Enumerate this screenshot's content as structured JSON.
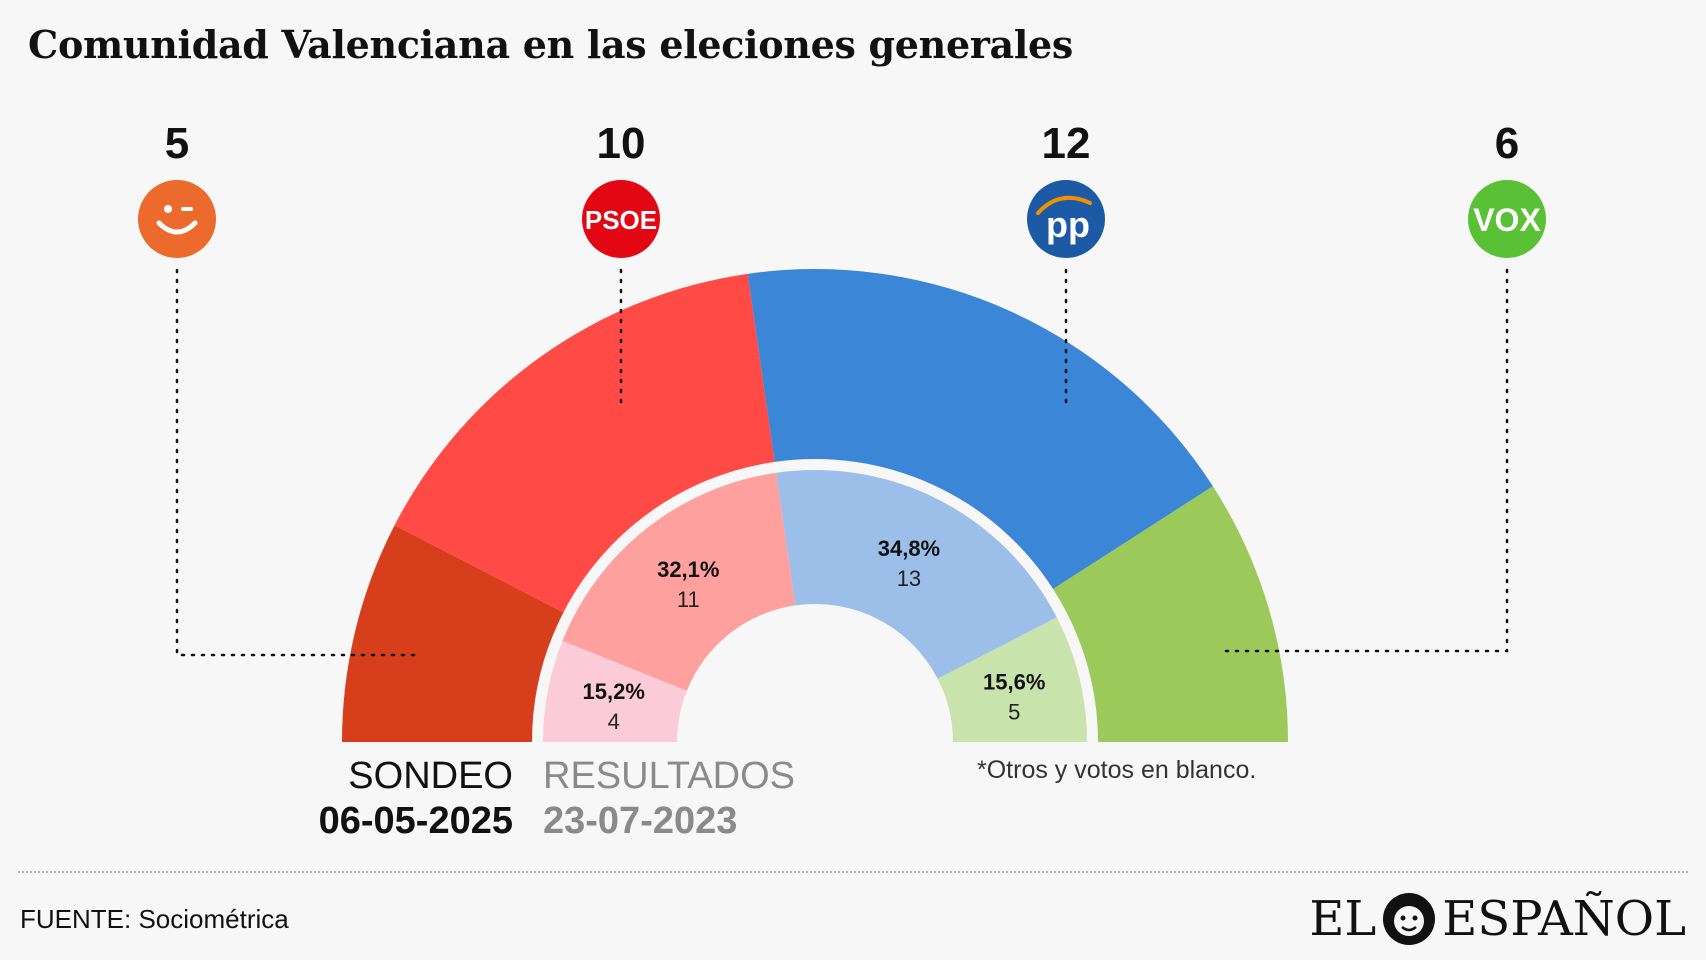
{
  "title": "Comunidad Valenciana en las eleciones generales",
  "chart_data": {
    "type": "pie",
    "subtype": "double-semicircle-parliament",
    "outer_ring": {
      "label": "SONDEO",
      "date": "06-05-2025",
      "parties": [
        {
          "party": "Compromís",
          "seats": 5,
          "color": "#d63e1c"
        },
        {
          "party": "PSOE",
          "seats": 10,
          "color": "#ff4a45"
        },
        {
          "party": "PP",
          "seats": 12,
          "color": "#3b86d6"
        },
        {
          "party": "VOX",
          "seats": 6,
          "color": "#9bc95a"
        }
      ]
    },
    "inner_ring": {
      "label": "RESULTADOS",
      "date": "23-07-2023",
      "parties": [
        {
          "party": "Compromís",
          "percent": "15,2%",
          "seats": 4,
          "color": "#fbcbd9"
        },
        {
          "party": "PSOE",
          "percent": "32,1%",
          "seats": 11,
          "color": "#fea09e"
        },
        {
          "party": "PP",
          "percent": "34,8%",
          "seats": 13,
          "color": "#9bbfe8"
        },
        {
          "party": "VOX",
          "percent": "15,6%",
          "seats": 5,
          "color": "#c9e3ad"
        }
      ]
    },
    "seat_labels": [
      "5",
      "10",
      "12",
      "6"
    ],
    "note": "*Otros y votos en blanco."
  },
  "logos": {
    "compromis": {
      "icon": "smile-wink-icon",
      "color": "#ec6a2c"
    },
    "psoe": {
      "text": "PSOE",
      "color": "#e30613"
    },
    "pp": {
      "text": "PP",
      "color": "#1d5aa6"
    },
    "vox": {
      "text": "VOX",
      "color": "#5ac035"
    }
  },
  "labels": {
    "sondeo": "SONDEO",
    "sondeo_date": "06-05-2025",
    "resultados": "RESULTADOS",
    "resultados_date": "23-07-2023"
  },
  "footer": {
    "source": "FUENTE: Sociométrica",
    "brand_left": "EL",
    "brand_right": "ESPAÑOL"
  }
}
